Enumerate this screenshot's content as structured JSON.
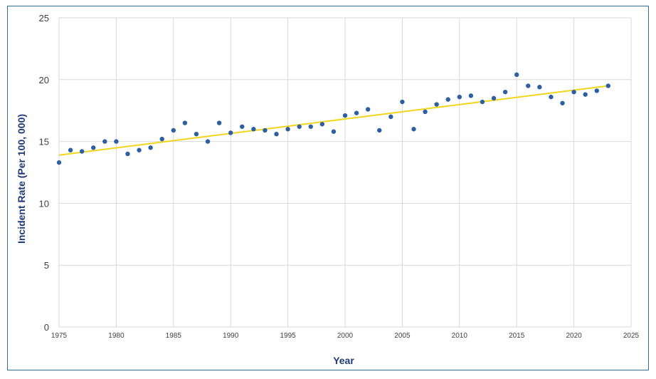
{
  "chart_data": {
    "type": "scatter",
    "title": "",
    "xlabel": "Year",
    "ylabel": "Incident Rate (Per 100, 000)",
    "xlim": [
      1975,
      2025
    ],
    "ylim": [
      0,
      25
    ],
    "xticks": [
      1975,
      1980,
      1985,
      1990,
      1995,
      2000,
      2005,
      2010,
      2015,
      2020,
      2025
    ],
    "yticks": [
      0,
      5,
      10,
      15,
      20,
      25
    ],
    "grid": true,
    "legend": "none",
    "colors": {
      "points": "#2e5fa3",
      "trendline": "#f2d51a",
      "gridline": "#d9d9d9",
      "axis_title": "#1f3a7a",
      "frame": "#2f6f8f"
    },
    "series": [
      {
        "x": [
          1975,
          1976,
          1977,
          1978,
          1979,
          1980,
          1981,
          1982,
          1983,
          1984,
          1985,
          1986,
          1987,
          1988,
          1989,
          1990,
          1991,
          1992,
          1993,
          1994,
          1995,
          1996,
          1997,
          1998,
          1999,
          2000,
          2001,
          2002,
          2003,
          2004,
          2005,
          2006,
          2007,
          2008,
          2009,
          2010,
          2011,
          2012,
          2013,
          2014,
          2015,
          2016,
          2017,
          2018,
          2019,
          2020,
          2021,
          2022,
          2023
        ],
        "values": [
          13.3,
          14.3,
          14.2,
          14.5,
          15.0,
          15.0,
          14.0,
          14.3,
          14.5,
          15.2,
          15.9,
          16.5,
          15.6,
          15.0,
          16.5,
          15.7,
          16.2,
          16.0,
          15.9,
          15.6,
          16.0,
          16.2,
          16.2,
          16.4,
          15.8,
          17.1,
          17.3,
          17.6,
          15.9,
          17.0,
          18.2,
          16.0,
          17.4,
          18.0,
          18.4,
          18.6,
          18.7,
          18.2,
          18.5,
          19.0,
          20.4,
          19.5,
          19.4,
          18.6,
          18.1,
          19.0,
          18.8,
          19.1,
          19.5
        ]
      }
    ],
    "trendline": {
      "x": [
        1975,
        2023
      ],
      "y": [
        13.9,
        19.5
      ]
    }
  }
}
